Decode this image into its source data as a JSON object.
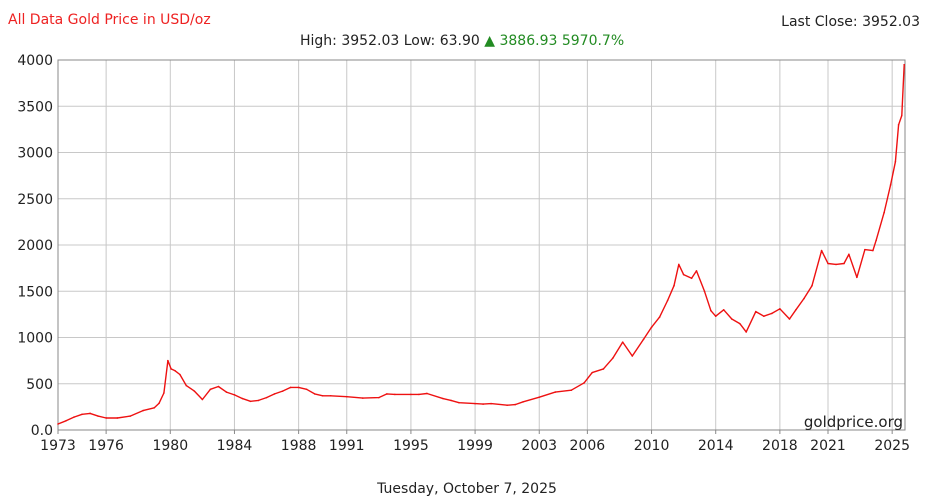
{
  "header": {
    "title": "All Data Gold Price in USD/oz",
    "last_close_label": "Last Close:",
    "last_close_value": "3952.03",
    "high_label": "High:",
    "high_value": "3952.03",
    "low_label": "Low:",
    "low_value": "63.90",
    "change_arrow": "▲",
    "change_abs": "3886.93",
    "change_pct": "5970.7%"
  },
  "footer": {
    "date": "Tuesday, October 7, 2025",
    "watermark": "goldprice.org"
  },
  "colors": {
    "series": "#ee1111",
    "title": "#ee2222",
    "change_up": "#228b22",
    "grid": "#c8c8c8"
  },
  "chart_data": {
    "type": "line",
    "title": "All Data Gold Price in USD/oz",
    "xlabel": "",
    "ylabel": "",
    "xlim": [
      1973,
      2025.8
    ],
    "ylim": [
      0,
      4000
    ],
    "grid": true,
    "legend": "none",
    "x_ticks": [
      1973,
      1976,
      1980,
      1984,
      1988,
      1991,
      1995,
      1999,
      2003,
      2006,
      2010,
      2014,
      2018,
      2021,
      2025
    ],
    "y_ticks": [
      {
        "value": 0,
        "label": "0.0"
      },
      {
        "value": 500,
        "label": "500"
      },
      {
        "value": 1000,
        "label": "1000"
      },
      {
        "value": 1500,
        "label": "1500"
      },
      {
        "value": 2000,
        "label": "2000"
      },
      {
        "value": 2500,
        "label": "2500"
      },
      {
        "value": 3000,
        "label": "3000"
      },
      {
        "value": 3500,
        "label": "3500"
      },
      {
        "value": 4000,
        "label": "4000"
      }
    ],
    "series": [
      {
        "x": [
          1973.0,
          1973.5,
          1974.0,
          1974.5,
          1975.0,
          1975.5,
          1976.0,
          1976.7,
          1977.5,
          1978.3,
          1979.0,
          1979.3,
          1979.6,
          1979.85,
          1980.05,
          1980.3,
          1980.6,
          1981.0,
          1981.5,
          1982.0,
          1982.5,
          1983.0,
          1983.5,
          1984.0,
          1984.5,
          1985.0,
          1985.5,
          1986.0,
          1986.5,
          1987.0,
          1987.5,
          1988.0,
          1988.5,
          1989.0,
          1989.5,
          1990.0,
          1991.0,
          1992.0,
          1993.0,
          1993.5,
          1994.0,
          1995.0,
          1995.5,
          1996.0,
          1997.0,
          1997.5,
          1998.0,
          1999.0,
          1999.5,
          2000.0,
          2001.0,
          2001.5,
          2002.0,
          2003.0,
          2004.0,
          2005.0,
          2005.8,
          2006.3,
          2007.0,
          2007.6,
          2008.2,
          2008.8,
          2009.5,
          2010.0,
          2010.5,
          2011.0,
          2011.4,
          2011.7,
          2012.0,
          2012.5,
          2012.8,
          2013.3,
          2013.7,
          2014.0,
          2014.5,
          2015.0,
          2015.5,
          2015.9,
          2016.5,
          2017.0,
          2017.5,
          2018.0,
          2018.6,
          2019.0,
          2019.5,
          2020.0,
          2020.6,
          2021.0,
          2021.5,
          2022.0,
          2022.3,
          2022.8,
          2023.3,
          2023.8,
          2024.0,
          2024.5,
          2024.9,
          2025.2,
          2025.4,
          2025.6,
          2025.75
        ],
        "y": [
          65,
          100,
          140,
          170,
          180,
          150,
          130,
          130,
          150,
          210,
          240,
          290,
          400,
          750,
          660,
          640,
          600,
          480,
          420,
          330,
          440,
          470,
          410,
          380,
          340,
          310,
          320,
          350,
          390,
          420,
          460,
          460,
          440,
          390,
          370,
          370,
          360,
          345,
          350,
          390,
          385,
          385,
          385,
          395,
          340,
          320,
          295,
          285,
          280,
          285,
          268,
          275,
          305,
          355,
          410,
          430,
          510,
          620,
          660,
          780,
          950,
          800,
          980,
          1110,
          1220,
          1400,
          1560,
          1790,
          1680,
          1640,
          1720,
          1500,
          1290,
          1230,
          1300,
          1200,
          1150,
          1060,
          1280,
          1230,
          1260,
          1310,
          1200,
          1300,
          1420,
          1560,
          1940,
          1800,
          1790,
          1800,
          1900,
          1650,
          1950,
          1940,
          2050,
          2350,
          2650,
          2900,
          3300,
          3400,
          3950
        ]
      }
    ]
  }
}
